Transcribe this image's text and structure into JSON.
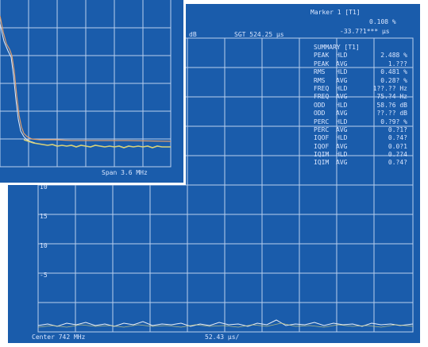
{
  "main": {
    "marker_title": "Marker 1 [T1]",
    "marker_value1": "0.108 %",
    "marker_value2": "-33.7?1*** µs",
    "unit_db": "dB",
    "sweep_time": "SGT 524.25 µs",
    "summary_title": "SUMMARY [T1]",
    "summary_rows": [
      {
        "name": "PEAK",
        "mode": "HLD",
        "value": "2.488 %"
      },
      {
        "name": "PEAK",
        "mode": "AVG",
        "value": "1.???"
      },
      {
        "name": "RMS",
        "mode": "HLD",
        "value": "0.481 %"
      },
      {
        "name": "RMS",
        "mode": "AVG",
        "value": "0.28? %"
      },
      {
        "name": "FREQ",
        "mode": "HLD",
        "value": "1??.?? Hz"
      },
      {
        "name": "FREQ",
        "mode": "AVG",
        "value": "75.?4 Hz"
      },
      {
        "name": "ODD",
        "mode": "HLD",
        "value": "58.?6 dB"
      },
      {
        "name": "ODD",
        "mode": "AVG",
        "value": "??.?? dB"
      },
      {
        "name": "PERC",
        "mode": "HLD",
        "value": "0.?9? %"
      },
      {
        "name": "PERC",
        "mode": "AVG",
        "value": "0.?1?"
      },
      {
        "name": "IQOF",
        "mode": "HLD",
        "value": "0.?4?"
      },
      {
        "name": "IQOF",
        "mode": "AVG",
        "value": "0.0?1"
      },
      {
        "name": "IQIM",
        "mode": "HLD",
        "value": "0.??4"
      },
      {
        "name": "IQIM",
        "mode": "AVG",
        "value": "0.?4?"
      }
    ],
    "y_label_top": "10",
    "y_label_mid1": "15",
    "y_label_mid2": "10",
    "y_label_low": "-5",
    "center": "Center 742 MHz",
    "span": "52.43 µs/"
  },
  "inset": {
    "span": "Span 3.6 MHz"
  },
  "colors": {
    "screen": "#1a5cab",
    "grid": "#b9cfee",
    "text": "#d9e6ff",
    "trace_yellow": "#d8d27a",
    "trace_orange": "#e0a070",
    "trace_white": "#e8eef8"
  }
}
